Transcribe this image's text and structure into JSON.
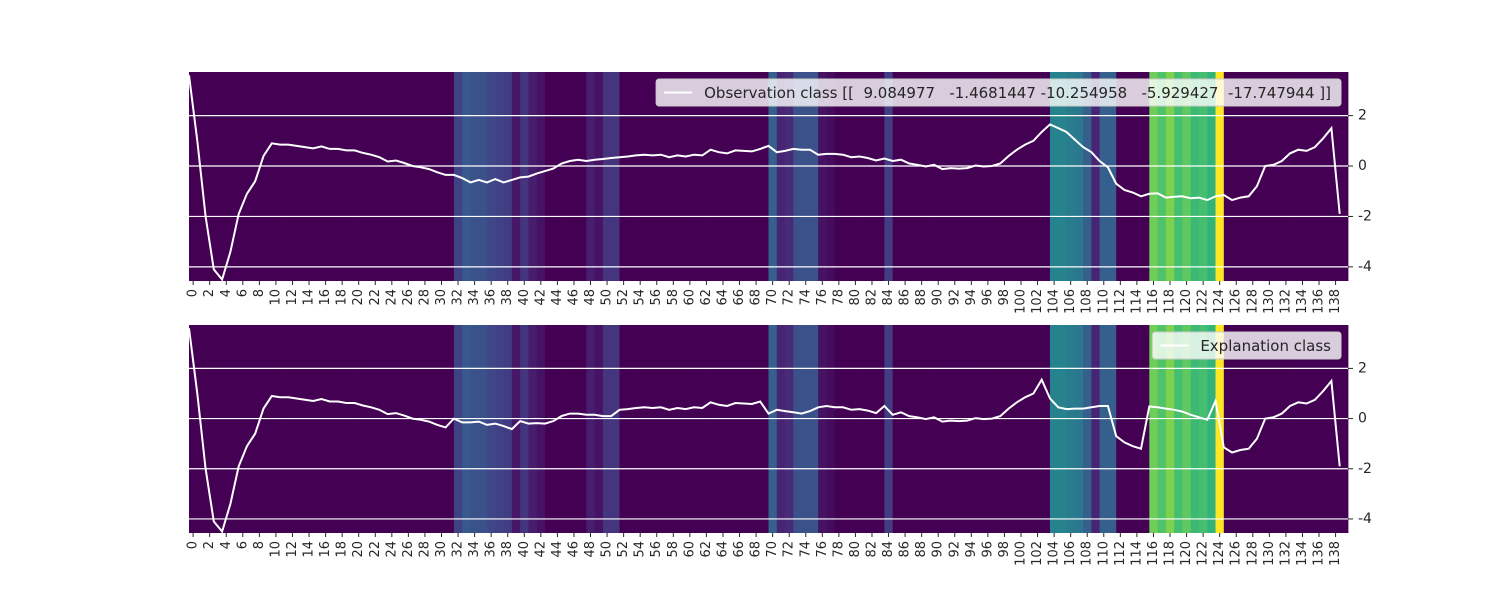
{
  "chart_data": [
    {
      "type": "line",
      "legend_label": "Observation class [[  9.084977   -1.4681447 -10.254958   -5.929427  -17.747944 ]]",
      "legend_loc": "upper right",
      "color": "#ffffff",
      "values": [
        3.6,
        1.0,
        -2.0,
        -4.1,
        -4.5,
        -3.4,
        -1.9,
        -1.1,
        -0.6,
        0.4,
        0.9,
        0.85,
        0.85,
        0.8,
        0.75,
        0.7,
        0.78,
        0.68,
        0.68,
        0.62,
        0.62,
        0.52,
        0.45,
        0.35,
        0.18,
        0.22,
        0.12,
        0.0,
        -0.05,
        -0.12,
        -0.25,
        -0.35,
        -0.35,
        -0.48,
        -0.65,
        -0.55,
        -0.65,
        -0.52,
        -0.65,
        -0.55,
        -0.45,
        -0.42,
        -0.3,
        -0.2,
        -0.1,
        0.1,
        0.2,
        0.25,
        0.2,
        0.25,
        0.28,
        0.32,
        0.35,
        0.38,
        0.42,
        0.45,
        0.42,
        0.45,
        0.35,
        0.42,
        0.38,
        0.45,
        0.42,
        0.65,
        0.55,
        0.5,
        0.62,
        0.6,
        0.58,
        0.68,
        0.8,
        0.55,
        0.6,
        0.68,
        0.65,
        0.65,
        0.45,
        0.48,
        0.48,
        0.45,
        0.35,
        0.38,
        0.32,
        0.22,
        0.3,
        0.2,
        0.25,
        0.1,
        0.05,
        -0.02,
        0.05,
        -0.12,
        -0.08,
        -0.1,
        -0.08,
        0.02,
        -0.02,
        0.0,
        0.1,
        0.4,
        0.65,
        0.85,
        1.0,
        1.35,
        1.65,
        1.5,
        1.35,
        1.05,
        0.75,
        0.55,
        0.2,
        -0.05,
        -0.7,
        -0.95,
        -1.05,
        -1.2,
        -1.1,
        -1.08,
        -1.25,
        -1.22,
        -1.2,
        -1.28,
        -1.25,
        -1.35,
        -1.2,
        -1.15,
        -1.35,
        -1.25,
        -1.2,
        -0.8,
        0.0,
        0.05,
        0.2,
        0.5,
        0.65,
        0.6,
        0.75,
        1.1,
        1.5,
        -1.9
      ],
      "heatmap": [
        0,
        0,
        0,
        0,
        0,
        0,
        0,
        0,
        0,
        0,
        0,
        0,
        0,
        0,
        0,
        0,
        0,
        0,
        0,
        0,
        0,
        0,
        0,
        0,
        0,
        0,
        0,
        0,
        0,
        0,
        0,
        0,
        0.2,
        0.28,
        0.25,
        0.25,
        0.22,
        0.2,
        0.18,
        0.06,
        0.15,
        0.08,
        0.05,
        0,
        0,
        0,
        0,
        0,
        0.08,
        0.05,
        0.15,
        0.15,
        0,
        0,
        0,
        0,
        0,
        0,
        0,
        0,
        0,
        0,
        0,
        0,
        0,
        0,
        0,
        0,
        0,
        0,
        0.3,
        0.1,
        0.12,
        0.25,
        0.25,
        0.25,
        0.05,
        0.03,
        0,
        0,
        0,
        0,
        0,
        0,
        0.18,
        0,
        0,
        0,
        0,
        0,
        0,
        0,
        0,
        0,
        0,
        0,
        0,
        0,
        0,
        0,
        0,
        0,
        0,
        0,
        0.45,
        0.45,
        0.42,
        0.4,
        0.3,
        0.1,
        0.3,
        0.3,
        0,
        0,
        0,
        0,
        0.78,
        0.72,
        0.8,
        0.7,
        0.75,
        0.68,
        0.7,
        0.65,
        1.0,
        0,
        0,
        0,
        0,
        0,
        0,
        0,
        0,
        0,
        0,
        0,
        0,
        0,
        0,
        0
      ],
      "colormap": [
        "#440154",
        "#482878",
        "#3e4989",
        "#31688e",
        "#26828e",
        "#1f9e89",
        "#35b779",
        "#6ece58",
        "#b5de2b",
        "#fde725"
      ],
      "clim": [
        0,
        1
      ],
      "xlim": [
        0,
        140
      ],
      "xticks": [
        0,
        2,
        4,
        6,
        8,
        10,
        12,
        14,
        16,
        18,
        20,
        22,
        24,
        26,
        28,
        30,
        32,
        34,
        36,
        38,
        40,
        42,
        44,
        46,
        48,
        50,
        52,
        54,
        56,
        58,
        60,
        62,
        64,
        66,
        68,
        70,
        72,
        74,
        76,
        78,
        80,
        82,
        84,
        86,
        88,
        90,
        92,
        94,
        96,
        98,
        100,
        102,
        104,
        106,
        108,
        110,
        112,
        114,
        116,
        118,
        120,
        122,
        124,
        126,
        128,
        130,
        132,
        134,
        136,
        138
      ],
      "ylim": [
        -4.56,
        3.73
      ],
      "yticks": [
        -4,
        -2,
        0,
        2
      ],
      "grid": true
    },
    {
      "type": "line",
      "legend_label": "Explanation class",
      "legend_loc": "upper right",
      "color": "#ffffff",
      "values": [
        3.6,
        1.0,
        -2.0,
        -4.1,
        -4.5,
        -3.4,
        -1.9,
        -1.1,
        -0.6,
        0.4,
        0.9,
        0.85,
        0.85,
        0.8,
        0.75,
        0.7,
        0.78,
        0.68,
        0.68,
        0.62,
        0.62,
        0.52,
        0.45,
        0.35,
        0.18,
        0.22,
        0.12,
        0.0,
        -0.05,
        -0.12,
        -0.25,
        -0.35,
        0.0,
        -0.15,
        -0.15,
        -0.12,
        -0.25,
        -0.2,
        -0.3,
        -0.42,
        -0.1,
        -0.2,
        -0.18,
        -0.2,
        -0.1,
        0.1,
        0.2,
        0.2,
        0.15,
        0.15,
        0.1,
        0.1,
        0.35,
        0.38,
        0.42,
        0.45,
        0.42,
        0.45,
        0.35,
        0.42,
        0.38,
        0.45,
        0.42,
        0.65,
        0.55,
        0.5,
        0.62,
        0.6,
        0.58,
        0.68,
        0.2,
        0.35,
        0.3,
        0.25,
        0.2,
        0.3,
        0.45,
        0.5,
        0.45,
        0.45,
        0.35,
        0.38,
        0.32,
        0.22,
        0.5,
        0.15,
        0.25,
        0.1,
        0.05,
        -0.02,
        0.05,
        -0.12,
        -0.08,
        -0.1,
        -0.08,
        0.02,
        -0.02,
        0.0,
        0.1,
        0.4,
        0.65,
        0.85,
        1.0,
        1.55,
        0.8,
        0.45,
        0.38,
        0.4,
        0.4,
        0.45,
        0.5,
        0.5,
        -0.7,
        -0.95,
        -1.1,
        -1.2,
        0.48,
        0.45,
        0.4,
        0.35,
        0.28,
        0.15,
        0.05,
        -0.05,
        0.7,
        -1.15,
        -1.35,
        -1.25,
        -1.2,
        -0.8,
        0.0,
        0.05,
        0.2,
        0.5,
        0.65,
        0.6,
        0.75,
        1.1,
        1.5,
        -1.9
      ],
      "heatmap": [
        0,
        0,
        0,
        0,
        0,
        0,
        0,
        0,
        0,
        0,
        0,
        0,
        0,
        0,
        0,
        0,
        0,
        0,
        0,
        0,
        0,
        0,
        0,
        0,
        0,
        0,
        0,
        0,
        0,
        0,
        0,
        0,
        0.2,
        0.28,
        0.25,
        0.25,
        0.22,
        0.2,
        0.18,
        0.06,
        0.15,
        0.08,
        0.05,
        0,
        0,
        0,
        0,
        0,
        0.08,
        0.05,
        0.15,
        0.15,
        0,
        0,
        0,
        0,
        0,
        0,
        0,
        0,
        0,
        0,
        0,
        0,
        0,
        0,
        0,
        0,
        0,
        0,
        0.3,
        0.1,
        0.12,
        0.25,
        0.25,
        0.25,
        0.05,
        0.03,
        0,
        0,
        0,
        0,
        0,
        0,
        0.18,
        0,
        0,
        0,
        0,
        0,
        0,
        0,
        0,
        0,
        0,
        0,
        0,
        0,
        0,
        0,
        0,
        0,
        0,
        0,
        0.45,
        0.45,
        0.42,
        0.4,
        0.3,
        0.1,
        0.3,
        0.3,
        0,
        0,
        0,
        0,
        0.78,
        0.72,
        0.8,
        0.7,
        0.75,
        0.68,
        0.7,
        0.65,
        1.0,
        0,
        0,
        0,
        0,
        0,
        0,
        0,
        0,
        0,
        0,
        0,
        0,
        0,
        0,
        0
      ],
      "colormap": [
        "#440154",
        "#482878",
        "#3e4989",
        "#31688e",
        "#26828e",
        "#1f9e89",
        "#35b779",
        "#6ece58",
        "#b5de2b",
        "#fde725"
      ],
      "clim": [
        0,
        1
      ],
      "xlim": [
        0,
        140
      ],
      "xticks": [
        0,
        2,
        4,
        6,
        8,
        10,
        12,
        14,
        16,
        18,
        20,
        22,
        24,
        26,
        28,
        30,
        32,
        34,
        36,
        38,
        40,
        42,
        44,
        46,
        48,
        50,
        52,
        54,
        56,
        58,
        60,
        62,
        64,
        66,
        68,
        70,
        72,
        74,
        76,
        78,
        80,
        82,
        84,
        86,
        88,
        90,
        92,
        94,
        96,
        98,
        100,
        102,
        104,
        106,
        108,
        110,
        112,
        114,
        116,
        118,
        120,
        122,
        124,
        126,
        128,
        130,
        132,
        134,
        136,
        138
      ],
      "ylim": [
        -4.56,
        3.73
      ],
      "yticks": [
        -4,
        -2,
        0,
        2
      ],
      "grid": true
    }
  ]
}
